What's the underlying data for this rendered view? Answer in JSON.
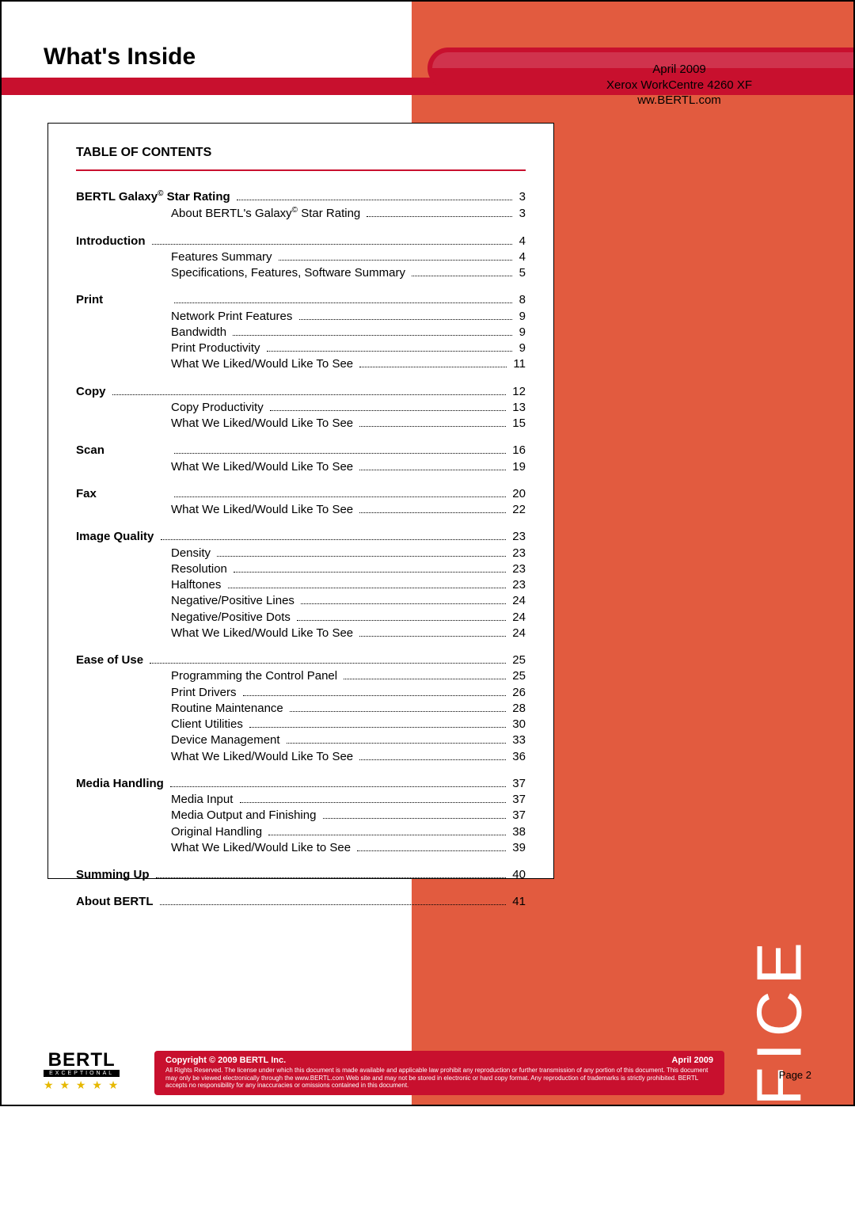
{
  "colors": {
    "panel": "#e25b3f",
    "accent": "#c8102e",
    "text": "#000000",
    "white": "#ffffff",
    "star": "#e6b800"
  },
  "header": {
    "title": "What's Inside",
    "meta_line1": "April 2009",
    "meta_line2": "Xerox WorkCentre 4260 XF",
    "meta_line3": "ww.BERTL.com"
  },
  "vertical_label": "OFFICE",
  "toc": {
    "heading": "TABLE OF CONTENTS",
    "sections": [
      {
        "title_html": "BERTL Galaxy<sup>©</sup> Star Rating",
        "page": "3",
        "items": [
          {
            "label_html": "About BERTL's Galaxy<sup>©</sup> Star Rating",
            "page": "3"
          }
        ]
      },
      {
        "title_html": "Introduction",
        "page": "4",
        "items": [
          {
            "label_html": "Features Summary",
            "page": "4"
          },
          {
            "label_html": "Specifications, Features, Software Summary",
            "page": "5"
          }
        ]
      },
      {
        "title_html": "Print",
        "page": "8",
        "title_no_dots_after_label": true,
        "items": [
          {
            "label_html": "Network Print Features",
            "page": "9"
          },
          {
            "label_html": "Bandwidth",
            "page": "9"
          },
          {
            "label_html": "Print Productivity",
            "page": "9"
          },
          {
            "label_html": "What We Liked/Would Like To See",
            "page": "11"
          }
        ]
      },
      {
        "title_html": "Copy",
        "page": "12",
        "items": [
          {
            "label_html": "Copy Productivity",
            "page": "13"
          },
          {
            "label_html": "What We Liked/Would Like To See",
            "page": "15"
          }
        ]
      },
      {
        "title_html": "Scan",
        "page": "16",
        "title_no_dots_after_label": true,
        "items": [
          {
            "label_html": "What We Liked/Would Like To See",
            "page": "19"
          }
        ]
      },
      {
        "title_html": "Fax",
        "page": "20",
        "title_no_dots_after_label": true,
        "items": [
          {
            "label_html": "What We Liked/Would Like To See",
            "page": "22"
          }
        ]
      },
      {
        "title_html": "Image Quality",
        "page": "23",
        "items": [
          {
            "label_html": "Density",
            "page": "23"
          },
          {
            "label_html": "Resolution",
            "page": "23"
          },
          {
            "label_html": "Halftones",
            "page": "23"
          },
          {
            "label_html": "Negative/Positive Lines",
            "page": "24"
          },
          {
            "label_html": "Negative/Positive Dots",
            "page": "24"
          },
          {
            "label_html": "What We Liked/Would Like To See",
            "page": "24"
          }
        ]
      },
      {
        "title_html": "Ease of Use",
        "page": "25",
        "items": [
          {
            "label_html": "Programming the Control Panel",
            "page": "25"
          },
          {
            "label_html": "Print Drivers",
            "page": "26"
          },
          {
            "label_html": "Routine Maintenance",
            "page": "28"
          },
          {
            "label_html": "Client Utilities",
            "page": "30"
          },
          {
            "label_html": "Device Management",
            "page": "33"
          },
          {
            "label_html": "What We Liked/Would Like To See",
            "page": "36"
          }
        ]
      },
      {
        "title_html": "Media Handling",
        "page": "37",
        "items": [
          {
            "label_html": "Media Input",
            "page": "37"
          },
          {
            "label_html": "Media Output and Finishing",
            "page": "37"
          },
          {
            "label_html": "Original Handling",
            "page": "38"
          },
          {
            "label_html": "What We Liked/Would Like to See",
            "page": "39"
          }
        ]
      },
      {
        "title_html": "Summing Up",
        "page": "40",
        "items": []
      },
      {
        "title_html": "About BERTL",
        "page": "41",
        "items": []
      }
    ]
  },
  "footer": {
    "logo_text": "BERTL",
    "logo_sub": "EXCEPTIONAL",
    "stars": "★ ★ ★ ★ ★",
    "copyright": "Copyright © 2009 BERTL Inc.",
    "date": "April 2009",
    "legal": "All Rights Reserved. The license under which this document is made available and applicable law prohibit any reproduction or further transmission of any portion of this document. This document may only be viewed electronically through the www.BERTL.com Web site and may not be stored in electronic or hard copy format. Any reproduction of trademarks is strictly prohibited. BERTL accepts no responsibility for any inaccuracies or omissions contained in this document.",
    "page_label": "Page 2"
  }
}
